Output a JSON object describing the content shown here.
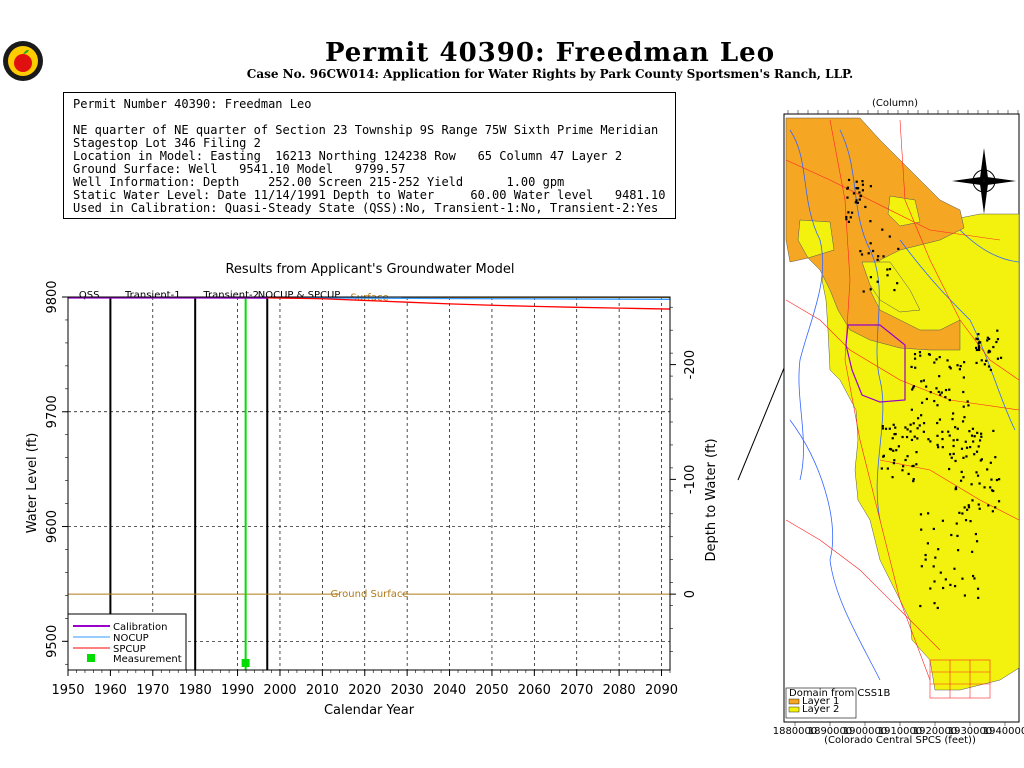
{
  "page": {
    "title": "Permit  40390:   Freedman Leo",
    "subtitle": "Case No. 96CW014: Application for Water Rights by Park County Sportsmen's Ranch, LLP."
  },
  "info": {
    "line1": "Permit Number 40390: Freedman Leo",
    "line2": "NE quarter of NE quarter of Section 23 Township 9S Range 75W Sixth Prime Meridian",
    "line3": "Stagestop Lot 346 Filing 2",
    "line4": "Location in Model: Easting  16213 Northing 124238 Row   65 Column 47 Layer 2",
    "line5": "Ground Surface: Well   9541.10 Model   9799.57",
    "line6": "Well Information: Depth    252.00 Screen 215-252 Yield      1.00 gpm",
    "line7": "Static Water Level: Date 11/14/1991 Depth to Water     60.00 Water level   9481.10",
    "line8": "Used in Calibration: Quasi-Steady State (QSS):No, Transient-1:No, Transient-2:Yes"
  },
  "chart_data": {
    "type": "line",
    "title": "Results from Applicant's Groundwater Model",
    "xlabel": "Calendar Year",
    "ylabel": "Water Level (ft)",
    "y2label": "Depth to Water (ft)",
    "xlim": [
      1950,
      2092
    ],
    "ylim": [
      9475,
      9800
    ],
    "x_ticks": [
      "1950",
      "1960",
      "1970",
      "1980",
      "1990",
      "2000",
      "2010",
      "2020",
      "2030",
      "2040",
      "2050",
      "2060",
      "2070",
      "2080",
      "2090"
    ],
    "y_ticks": [
      "9500",
      "9600",
      "9700",
      "9800"
    ],
    "y2_ticks": [
      "-200",
      "-100",
      "0"
    ],
    "y2_tick_levels": [
      9741.1,
      9641.1,
      9541.1
    ],
    "grid": true,
    "legend_position": "bottom-left",
    "periods": [
      {
        "label": "QSS",
        "start": 1950,
        "end": 1960
      },
      {
        "label": "Transient-1",
        "start": 1960,
        "end": 1980
      },
      {
        "label": "Transient-2",
        "start": 1980,
        "end": 1997
      },
      {
        "label": "NOCUP & SPCUP",
        "start": 1997,
        "end": 2092
      }
    ],
    "reference_lines": [
      {
        "label": "Ground Surface",
        "y": 9541.1,
        "label_x": 2015,
        "color": "#b07a1a"
      },
      {
        "label": "Surface",
        "y": 9799.57,
        "label_x": 2015,
        "color": "#b07a1a"
      }
    ],
    "measurement_line_x": 1991.9,
    "series": [
      {
        "name": "Calibration",
        "color": "#9900cc",
        "x": [
          1950,
          1960,
          1980,
          1997
        ],
        "y": [
          9799.5,
          9799.5,
          9799.5,
          9799.3
        ]
      },
      {
        "name": "NOCUP",
        "color": "#3399ff",
        "x": [
          1997,
          2020,
          2050,
          2092
        ],
        "y": [
          9799.3,
          9799.0,
          9798.5,
          9798.0
        ]
      },
      {
        "name": "SPCUP",
        "color": "#ff0000",
        "x": [
          1997,
          2010,
          2020,
          2030,
          2040,
          2050,
          2060,
          2070,
          2080,
          2092
        ],
        "y": [
          9799.3,
          9798.5,
          9797.0,
          9795.5,
          9794.0,
          9792.8,
          9791.8,
          9791.0,
          9790.3,
          9789.5
        ]
      },
      {
        "name": "Measurement",
        "color": "#00dd00",
        "marker": true,
        "x": [
          1991.9
        ],
        "y": [
          9481.1
        ]
      }
    ]
  },
  "map": {
    "legend_title": "Domain from CSS1B",
    "legend_items": [
      "Layer 1",
      "Layer 2"
    ],
    "top_label": "(Column)",
    "bottom_label": "(Colorado Central SPCS (feet))",
    "bottom_ticks": [
      "1880000",
      "1890000",
      "1900000",
      "1910000",
      "1920000",
      "1930000",
      "1940000"
    ],
    "colors": {
      "layer1": "#f5a623",
      "layer2": "#f2f20e",
      "rivers": "#3366ff",
      "roads": "#ff2222",
      "wells": "#000000"
    }
  }
}
